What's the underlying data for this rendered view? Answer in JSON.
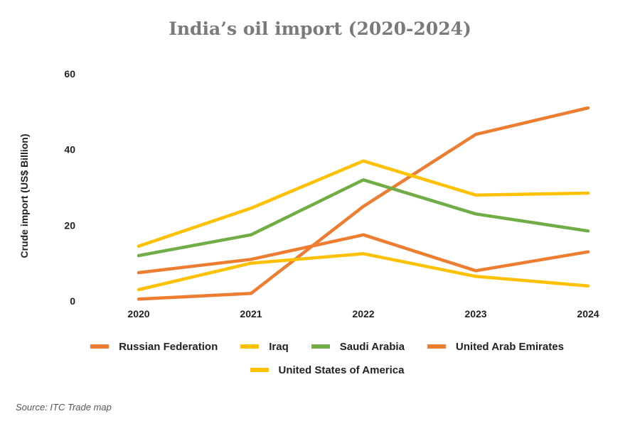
{
  "page": {
    "title": "India’s oil import (2020-2024)",
    "source": "Source: ITC Trade map"
  },
  "chart_data": {
    "type": "line",
    "title": "India’s oil import (2020-2024)",
    "xlabel": "",
    "ylabel": "Crude import (US$ Billion)",
    "x": [
      "2020",
      "2021",
      "2022",
      "2023",
      "2024"
    ],
    "ylim": [
      0,
      60
    ],
    "yticks": [
      0,
      20,
      40,
      60
    ],
    "grid": false,
    "legend": "bottom",
    "series": [
      {
        "name": "Russian Federation",
        "color": "#ED7D31",
        "values": [
          0.5,
          2,
          25,
          44,
          51
        ]
      },
      {
        "name": "Iraq",
        "color": "#FFC000",
        "values": [
          14.5,
          24.5,
          37,
          28,
          28.5
        ]
      },
      {
        "name": "Saudi Arabia",
        "color": "#70AD47",
        "values": [
          12,
          17.5,
          32,
          23,
          18.5
        ]
      },
      {
        "name": "United Arab Emirates",
        "color": "#ED7D31",
        "values": [
          7.5,
          11,
          17.5,
          8,
          13
        ]
      },
      {
        "name": "United States of America",
        "color": "#FFC000",
        "values": [
          3,
          10,
          12.5,
          6.5,
          4
        ]
      }
    ]
  }
}
